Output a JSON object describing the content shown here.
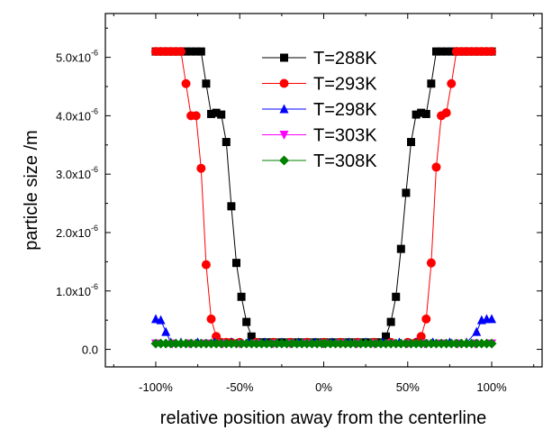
{
  "chart_data": {
    "type": "line",
    "xlabel": "relative position away from the centerline",
    "ylabel": "particle size /m",
    "xlim": [
      -1.3,
      1.3
    ],
    "ylim": [
      -3e-07,
      5.75e-06
    ],
    "x_ticks": [
      {
        "value": -1.0,
        "label": "-100%"
      },
      {
        "value": -0.5,
        "label": "-50%"
      },
      {
        "value": 0.0,
        "label": "0%"
      },
      {
        "value": 0.5,
        "label": "50%"
      },
      {
        "value": 1.0,
        "label": "100%"
      }
    ],
    "y_ticks": [
      {
        "value": 0,
        "mantissa": "0.0",
        "exp": ""
      },
      {
        "value": 1e-06,
        "mantissa": "1.0x10",
        "exp": "-6"
      },
      {
        "value": 2e-06,
        "mantissa": "2.0x10",
        "exp": "-6"
      },
      {
        "value": 3e-06,
        "mantissa": "3.0x10",
        "exp": "-6"
      },
      {
        "value": 4e-06,
        "mantissa": "4.0x10",
        "exp": "-6"
      },
      {
        "value": 5e-06,
        "mantissa": "5.0x10",
        "exp": "-6"
      }
    ],
    "legend_position": "top-center",
    "series": [
      {
        "name": "T=288K",
        "color": "#000000",
        "marker": "square",
        "x": [
          -1.0,
          -0.97,
          -0.94,
          -0.91,
          -0.88,
          -0.85,
          -0.82,
          -0.79,
          -0.76,
          -0.73,
          -0.7,
          -0.67,
          -0.64,
          -0.61,
          -0.58,
          -0.55,
          -0.52,
          -0.49,
          -0.46,
          -0.43,
          -0.4,
          -0.37,
          -0.34,
          -0.3,
          -0.25,
          -0.2,
          -0.15,
          -0.1,
          -0.05,
          0.0,
          0.05,
          0.1,
          0.15,
          0.2,
          0.25,
          0.3,
          0.34,
          0.37,
          0.4,
          0.43,
          0.46,
          0.49,
          0.52,
          0.55,
          0.58,
          0.61,
          0.64,
          0.67,
          0.7,
          0.73,
          0.76,
          0.79,
          0.82,
          0.85,
          0.88,
          0.91,
          0.94,
          0.97,
          1.0
        ],
        "y": [
          5.1e-06,
          5.1e-06,
          5.1e-06,
          5.1e-06,
          5.1e-06,
          5.1e-06,
          5.1e-06,
          5.1e-06,
          5.1e-06,
          5.1e-06,
          4.55e-06,
          4.03e-06,
          4.05e-06,
          4.02e-06,
          3.55e-06,
          2.45e-06,
          1.48e-06,
          9e-07,
          4.7e-07,
          2.2e-07,
          1.2e-07,
          1.2e-07,
          1.2e-07,
          1.2e-07,
          1.2e-07,
          1.2e-07,
          1.2e-07,
          1.2e-07,
          1.2e-07,
          1.2e-07,
          1.2e-07,
          1.2e-07,
          1.2e-07,
          1.2e-07,
          1.2e-07,
          1.2e-07,
          1.2e-07,
          2.2e-07,
          4.7e-07,
          9e-07,
          1.72e-06,
          2.68e-06,
          3.55e-06,
          4.02e-06,
          4.05e-06,
          4.03e-06,
          4.55e-06,
          5.1e-06,
          5.1e-06,
          5.1e-06,
          5.1e-06,
          5.1e-06,
          5.1e-06,
          5.1e-06,
          5.1e-06,
          5.1e-06,
          5.1e-06,
          5.1e-06,
          5.1e-06
        ]
      },
      {
        "name": "T=293K",
        "color": "#ff0000",
        "marker": "circle",
        "x": [
          -1.0,
          -0.97,
          -0.94,
          -0.91,
          -0.88,
          -0.85,
          -0.82,
          -0.79,
          -0.76,
          -0.73,
          -0.7,
          -0.67,
          -0.64,
          -0.61,
          -0.58,
          -0.55,
          -0.5,
          -0.4,
          -0.3,
          -0.2,
          -0.1,
          0.0,
          0.1,
          0.2,
          0.3,
          0.4,
          0.5,
          0.55,
          0.58,
          0.61,
          0.64,
          0.67,
          0.7,
          0.73,
          0.76,
          0.79,
          0.82,
          0.85,
          0.88,
          0.91,
          0.94,
          0.97,
          1.0
        ],
        "y": [
          5.1e-06,
          5.1e-06,
          5.1e-06,
          5.1e-06,
          5.1e-06,
          5.1e-06,
          4.55e-06,
          4e-06,
          4e-06,
          3.1e-06,
          1.45e-06,
          5.2e-07,
          2.2e-07,
          1.2e-07,
          1.2e-07,
          1.2e-07,
          1.2e-07,
          1.2e-07,
          1.2e-07,
          1.2e-07,
          1.2e-07,
          1.2e-07,
          1.2e-07,
          1.2e-07,
          1.2e-07,
          1.2e-07,
          1.2e-07,
          1.2e-07,
          2.2e-07,
          5.2e-07,
          1.48e-06,
          3.12e-06,
          4e-06,
          4.05e-06,
          4.55e-06,
          5.1e-06,
          5.1e-06,
          5.1e-06,
          5.1e-06,
          5.1e-06,
          5.1e-06,
          5.1e-06,
          5.1e-06
        ]
      },
      {
        "name": "T=298K",
        "color": "#0000ff",
        "marker": "triangle-up",
        "x": [
          -1.0,
          -0.97,
          -0.94,
          -0.91,
          -0.85,
          -0.75,
          -0.65,
          -0.55,
          -0.45,
          -0.35,
          -0.25,
          -0.15,
          -0.05,
          0.05,
          0.15,
          0.25,
          0.35,
          0.45,
          0.55,
          0.65,
          0.75,
          0.85,
          0.91,
          0.94,
          0.97,
          1.0
        ],
        "y": [
          5.2e-07,
          5e-07,
          3e-07,
          1.2e-07,
          1.2e-07,
          1.2e-07,
          1.2e-07,
          1.2e-07,
          1.2e-07,
          1.2e-07,
          1.2e-07,
          1.2e-07,
          1.2e-07,
          1.2e-07,
          1.2e-07,
          1.2e-07,
          1.2e-07,
          1.2e-07,
          1.2e-07,
          1.2e-07,
          1.2e-07,
          1.2e-07,
          3e-07,
          5e-07,
          5.2e-07,
          5.2e-07
        ]
      },
      {
        "name": "T=303K",
        "color": "#ff00ff",
        "marker": "triangle-down",
        "x": [
          -1.0,
          -0.9,
          -0.8,
          -0.7,
          -0.6,
          -0.5,
          -0.4,
          -0.3,
          -0.2,
          -0.1,
          0.0,
          0.1,
          0.2,
          0.3,
          0.4,
          0.5,
          0.6,
          0.7,
          0.8,
          0.9,
          1.0
        ],
        "y": [
          1e-07,
          1e-07,
          1e-07,
          1e-07,
          1e-07,
          1e-07,
          1e-07,
          1e-07,
          1e-07,
          1e-07,
          1e-07,
          1e-07,
          1e-07,
          1e-07,
          1e-07,
          1e-07,
          1e-07,
          1e-07,
          1e-07,
          1e-07,
          1e-07
        ]
      },
      {
        "name": "T=308K",
        "color": "#008000",
        "marker": "diamond",
        "x": [
          -1.0,
          -0.97,
          -0.94,
          -0.91,
          -0.88,
          -0.85,
          -0.82,
          -0.79,
          -0.76,
          -0.73,
          -0.7,
          -0.67,
          -0.64,
          -0.61,
          -0.58,
          -0.55,
          -0.52,
          -0.49,
          -0.46,
          -0.43,
          -0.4,
          -0.37,
          -0.34,
          -0.31,
          -0.28,
          -0.25,
          -0.22,
          -0.19,
          -0.16,
          -0.13,
          -0.1,
          -0.07,
          -0.04,
          -0.01,
          0.01,
          0.04,
          0.07,
          0.1,
          0.13,
          0.16,
          0.19,
          0.22,
          0.25,
          0.28,
          0.31,
          0.34,
          0.37,
          0.4,
          0.43,
          0.46,
          0.49,
          0.52,
          0.55,
          0.58,
          0.61,
          0.64,
          0.67,
          0.7,
          0.73,
          0.76,
          0.79,
          0.82,
          0.85,
          0.88,
          0.91,
          0.94,
          0.97,
          1.0
        ],
        "y": [
          1e-07,
          1e-07,
          1e-07,
          1e-07,
          1e-07,
          1e-07,
          1e-07,
          1e-07,
          1e-07,
          1e-07,
          1e-07,
          1e-07,
          1e-07,
          1e-07,
          1e-07,
          1e-07,
          1e-07,
          1e-07,
          1e-07,
          1e-07,
          1e-07,
          1e-07,
          1e-07,
          1e-07,
          1e-07,
          1e-07,
          1e-07,
          1e-07,
          1e-07,
          1e-07,
          1e-07,
          1e-07,
          1e-07,
          1e-07,
          1e-07,
          1e-07,
          1e-07,
          1e-07,
          1e-07,
          1e-07,
          1e-07,
          1e-07,
          1e-07,
          1e-07,
          1e-07,
          1e-07,
          1e-07,
          1e-07,
          1e-07,
          1e-07,
          1e-07,
          1e-07,
          1e-07,
          1e-07,
          1e-07,
          1e-07,
          1e-07,
          1e-07,
          1e-07,
          1e-07,
          1e-07,
          1e-07,
          1e-07,
          1e-07,
          1e-07,
          1e-07,
          1e-07,
          1e-07
        ]
      }
    ]
  }
}
